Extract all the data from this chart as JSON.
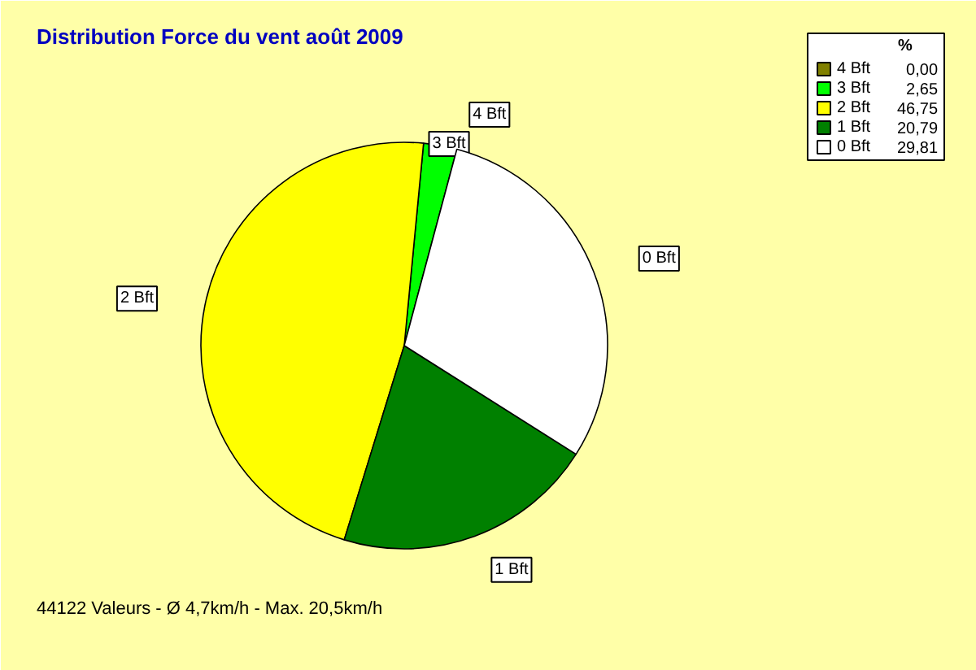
{
  "chart_data": {
    "type": "pie",
    "title": "Distribution Force du vent  août 2009",
    "categories": [
      "4 Bft",
      "3 Bft",
      "2 Bft",
      "1 Bft",
      "0 Bft"
    ],
    "values": [
      0.0,
      2.65,
      46.75,
      20.79,
      29.81
    ],
    "value_labels": [
      "0,00",
      "2,65",
      "46,75",
      "20,79",
      "29,81"
    ],
    "colors": [
      "#808000",
      "#00ff00",
      "#ffff00",
      "#008000",
      "#ffffff"
    ],
    "legend_title": "%",
    "legend": "top right",
    "annotations": [
      "44122 Valeurs   -   Ø 4,7km/h  -  Max. 20,5km/h"
    ]
  }
}
